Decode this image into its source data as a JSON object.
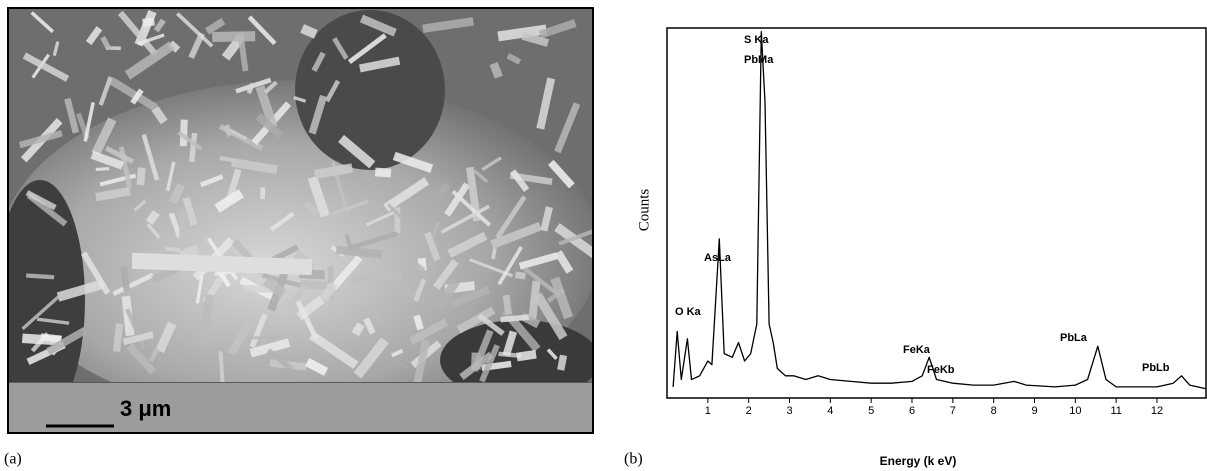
{
  "panel_a": {
    "label": "(a)",
    "scale_label": "3 μm"
  },
  "chart_data": {
    "type": "line",
    "panel_label": "(b)",
    "x_label": "Energy (k eV)",
    "y_label": "Counts",
    "x": [
      0.15,
      0.25,
      0.35,
      0.5,
      0.6,
      0.8,
      1.0,
      1.1,
      1.28,
      1.4,
      1.6,
      1.75,
      1.9,
      2.05,
      2.2,
      2.31,
      2.4,
      2.5,
      2.6,
      2.7,
      2.9,
      3.1,
      3.4,
      3.7,
      4.0,
      4.5,
      5.0,
      5.5,
      6.0,
      6.25,
      6.42,
      6.6,
      7.0,
      7.5,
      8.0,
      8.5,
      8.8,
      9.5,
      10.0,
      10.3,
      10.55,
      10.75,
      11.0,
      11.5,
      12.0,
      12.4,
      12.6,
      12.8,
      13.2
    ],
    "series": [
      {
        "color": "#000000",
        "values": [
          3,
          18,
          5,
          16,
          5,
          6,
          10,
          9,
          43,
          12,
          11,
          15,
          10,
          12,
          20,
          99,
          80,
          20,
          15,
          8,
          6,
          6,
          5,
          6,
          5,
          4.5,
          4,
          4,
          4.5,
          6,
          11,
          5,
          4,
          3.5,
          3.5,
          4.5,
          3.5,
          3,
          3.5,
          5,
          14,
          5,
          3,
          3,
          3,
          4,
          6,
          3.5,
          2.5
        ]
      }
    ],
    "xlim": [
      0,
      13.2
    ],
    "ylim": [
      0,
      100
    ],
    "xticks": [
      1,
      2,
      3,
      4,
      5,
      6,
      7,
      8,
      9,
      10,
      11,
      12
    ],
    "annotations": [
      "O Ka",
      "AsLa",
      "S Ka",
      "PbMa",
      "FeKa",
      "FeKb",
      "PbLa",
      "PbLb"
    ]
  }
}
